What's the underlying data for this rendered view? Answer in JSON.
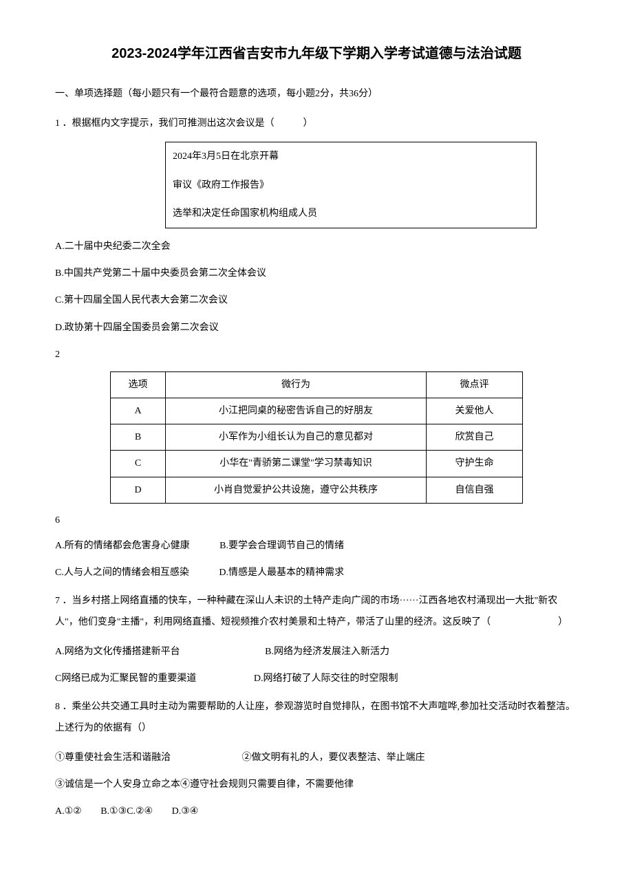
{
  "doc": {
    "title": "2023-2024学年江西省吉安市九年级下学期入学考试道德与法治试题",
    "section1_header": "一、单项选择题（每小题只有一个最符合题意的选项，每小题2分，共36分）",
    "q1": {
      "stem": "1 ．根据框内文字提示，我们可推测出这次会议是（　　　）",
      "box": {
        "line1": "2024年3月5日在北京开幕",
        "line2": "审议《政府工作报告》",
        "line3": "选举和决定任命国家机构组成人员"
      },
      "optA": "A.二十届中央纪委二次全会",
      "optB": "B.中国共产党第二十届中央委员会第二次全体会议",
      "optC": "C.第十四届全国人民代表大会第二次会议",
      "optD": "D.政协第十四届全国委员会第二次会议"
    },
    "lone2": "2",
    "table": {
      "headers": {
        "col1": "选项",
        "col2": "微行为",
        "col3": "微点评"
      },
      "rows": [
        {
          "opt": "A",
          "behavior": "小江把同桌的秘密告诉自己的好朋友",
          "comment": "关爱他人"
        },
        {
          "opt": "B",
          "behavior": "小军作为小组长认为自己的意见都对",
          "comment": "欣赏自己"
        },
        {
          "opt": "C",
          "behavior": "小华在\"青骄第二课堂\"学习禁毒知识",
          "comment": "守护生命"
        },
        {
          "opt": "D",
          "behavior": "小肖自觉爱护公共设施，遵守公共秩序",
          "comment": "自信自强"
        }
      ]
    },
    "lone6": "6",
    "q6opts": {
      "A": "A.所有的情绪都会危害身心健康",
      "B": "B.要学会合理调节自己的情绪",
      "C": "C.人与人之间的情绪会相互感染",
      "D": "D.情感是人最基本的精神需求"
    },
    "q7": {
      "stem": "7 ．当乡村搭上网络直播的快车，一种种藏在深山人未识的土特产走向广阔的市场······江西各地农村涌现出一大批\"新农人\"，他们变身\"主播\"，利用网络直播、短视频推介农村美景和土特产，带活了山里的经济。这反映了（　　　　　　　）",
      "A": "A.网络为文化传播搭建新平台",
      "B": "B.网络为经济发展注入新活力",
      "C": "C网络已成为汇聚民智的重要渠道",
      "D": "D.网络打破了人际交往的时空限制"
    },
    "q8": {
      "stem": "8 ．乘坐公共交通工具时主动为需要帮助的人让座，参观游览时自觉排队，在图书馆不大声喧哗,参加社交活动时衣着整洁。上述行为的依据有（）",
      "s1": "①尊重使社会生活和谐融洽",
      "s2": "②做文明有礼的人，要仪表整洁、举止端庄",
      "s3": "③诚信是一个人安身立命之本④遵守社会规则只需要自律，不需要他律",
      "A": "A.①②",
      "B": "B.①③C.②④",
      "D": "D.③④"
    }
  },
  "style": {
    "page_bg": "#ffffff",
    "text_color": "#000000",
    "title_fontsize": 20,
    "body_fontsize": 14
  }
}
